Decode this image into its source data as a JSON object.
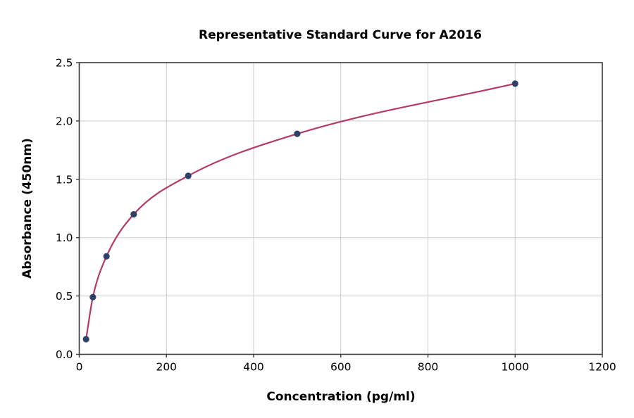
{
  "chart_data": {
    "type": "scatter",
    "title": "Representative Standard Curve for A2016",
    "xlabel": "Concentration (pg/ml)",
    "ylabel": "Absorbance (450nm)",
    "x": [
      15.6,
      31.25,
      62.5,
      125,
      250,
      500,
      1000
    ],
    "y": [
      0.13,
      0.49,
      0.84,
      1.2,
      1.53,
      1.89,
      2.32
    ],
    "fit_curve": true,
    "xlim": [
      0,
      1200
    ],
    "ylim": [
      0,
      2.5
    ],
    "xticks": [
      0,
      200,
      400,
      600,
      800,
      1000,
      1200
    ],
    "yticks": [
      0.0,
      0.5,
      1.0,
      1.5,
      2.0,
      2.5
    ],
    "grid": true,
    "legend": "none",
    "colors": {
      "curve": "#b43a6a",
      "points": "#2e4269",
      "grid": "#cccccc",
      "spine": "#3a3a3a",
      "text": "#000000"
    }
  }
}
